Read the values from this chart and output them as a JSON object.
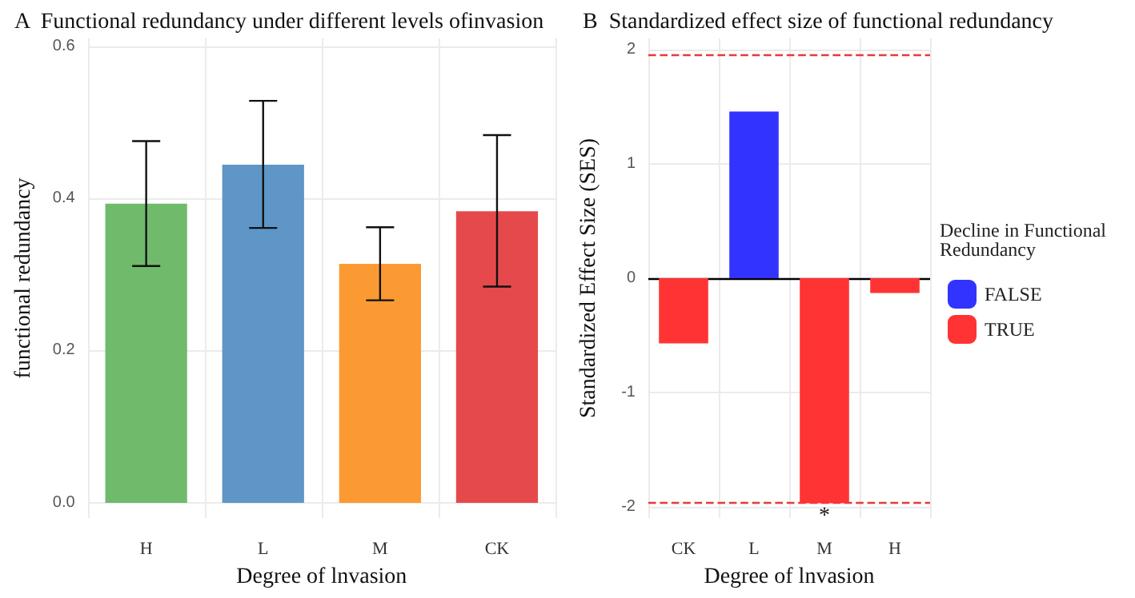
{
  "chart_data": [
    {
      "type": "bar",
      "title": "A  Functional redundancy under different levels ofinvasion",
      "xlabel": "Degree of lnvasion",
      "ylabel": "functional redundancy",
      "categories": [
        "H",
        "L",
        "M",
        "CK"
      ],
      "values": [
        0.393,
        0.444,
        0.314,
        0.383
      ],
      "colors": [
        "#6fbb6b",
        "#5d96c7",
        "#fb9a33",
        "#e6494b"
      ],
      "errors": [
        [
          0.311,
          0.475
        ],
        [
          0.361,
          0.528
        ],
        [
          0.266,
          0.362
        ],
        [
          0.284,
          0.483
        ]
      ],
      "ylim": [
        -0.02,
        0.61
      ],
      "yticks": [
        {
          "value": 0,
          "label": "0.0"
        },
        {
          "value": 0.2,
          "label": "0.2"
        },
        {
          "value": 0.4,
          "label": "0.4"
        },
        {
          "value": 0.6,
          "label": "0.6"
        }
      ],
      "grid": true,
      "legend": false
    },
    {
      "type": "bar",
      "title": "B  Standardized effect size of functional redundancy",
      "xlabel": "Degree of lnvasion",
      "ylabel": "Standardized Effect Size (SES)",
      "legend_title": "Decline in Functional Redundancy",
      "categories": [
        "CK",
        "L",
        "M",
        "H"
      ],
      "series": [
        {
          "name": "FALSE",
          "color": "#3333ff",
          "values": [
            null,
            1.46,
            null,
            null
          ]
        },
        {
          "name": "TRUE",
          "color": "#ff3333",
          "values": [
            -0.57,
            null,
            -1.97,
            -0.13
          ]
        }
      ],
      "ylim": [
        -2.1,
        2.1
      ],
      "yticks": [
        -2,
        -1,
        0,
        1,
        2
      ],
      "grid": true,
      "legend": "right",
      "ref_lines": [
        {
          "axis": "y",
          "value": 1.96,
          "color": "#e8393a",
          "line_style": "dashed"
        },
        {
          "axis": "y",
          "value": -1.96,
          "color": "#e8393a",
          "line_style": "dashed"
        },
        {
          "axis": "y",
          "value": 0,
          "color": "#000000",
          "line_style": "solid"
        }
      ],
      "annotations": [
        {
          "text": "*",
          "x": "M",
          "y": -2
        }
      ]
    }
  ]
}
